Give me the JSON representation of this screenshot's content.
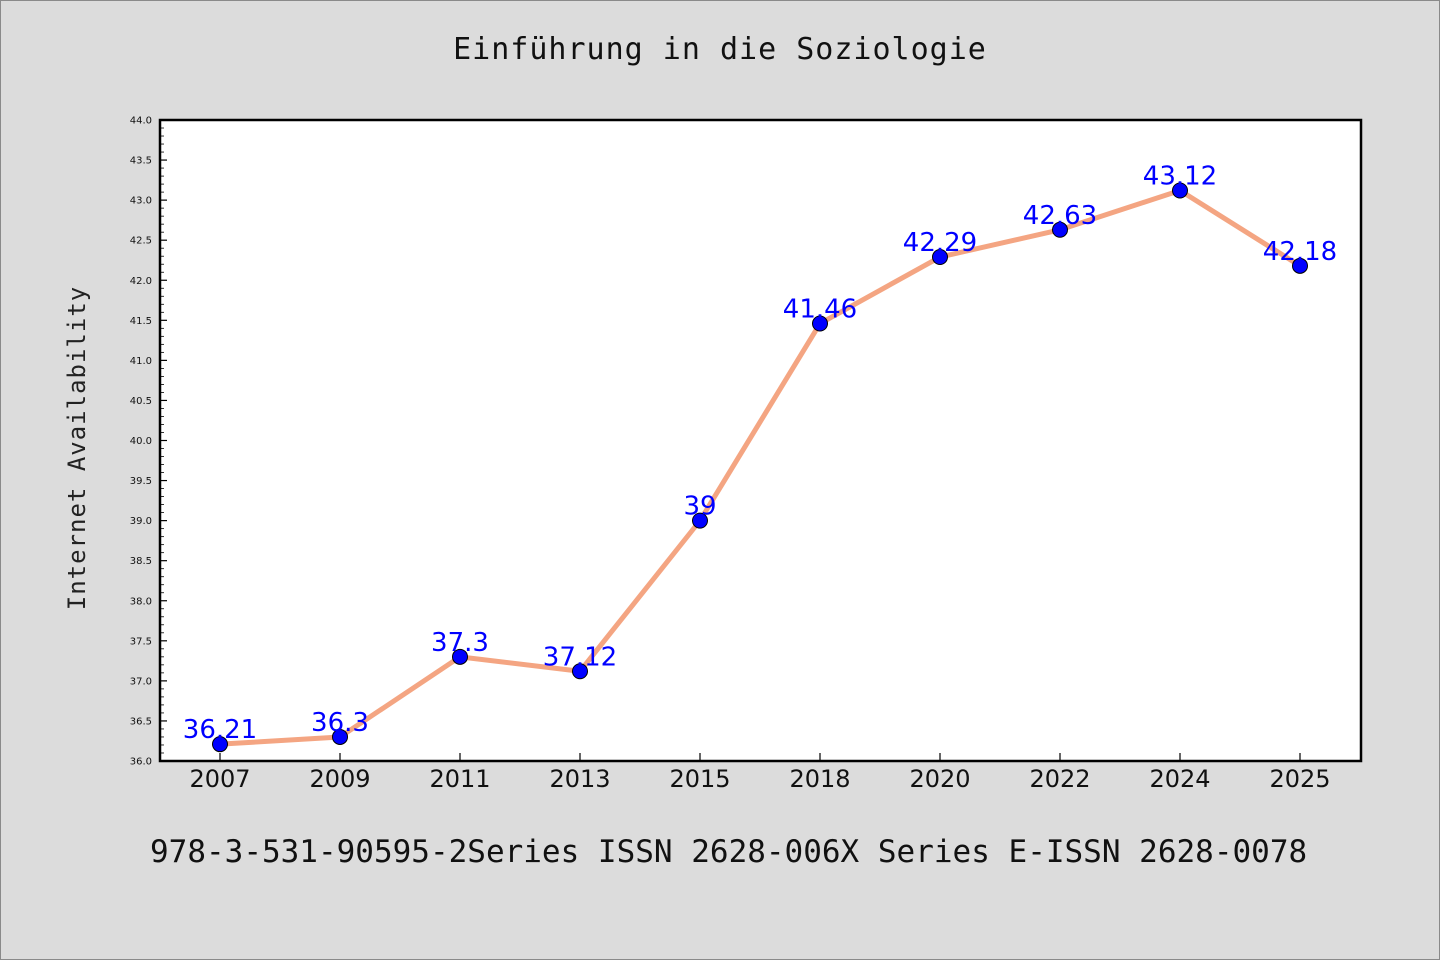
{
  "chart_data": {
    "type": "line",
    "title": "Einführung in die Soziologie",
    "ylabel": "Internet Availability",
    "xlabel": "",
    "categories": [
      "2007",
      "2009",
      "2011",
      "2013",
      "2015",
      "2018",
      "2020",
      "2022",
      "2024",
      "2025"
    ],
    "series": [
      {
        "values": [
          36.21,
          36.3,
          37.3,
          37.12,
          39,
          41.46,
          42.29,
          42.63,
          43.12,
          42.18
        ],
        "labels": [
          "36.21",
          "36.3",
          "37.3",
          "37.12",
          "39",
          "41.46",
          "42.29",
          "42.63",
          "43.12",
          "42.18"
        ]
      }
    ],
    "ylim": [
      36.0,
      44.0
    ],
    "yticks": [
      "36.0",
      "36.5",
      "37.0",
      "37.5",
      "38.0",
      "38.5",
      "39.0",
      "39.5",
      "40.0",
      "40.5",
      "41.0",
      "41.5",
      "42.0",
      "42.5",
      "43.0",
      "43.5",
      "44.0"
    ],
    "grid": false,
    "colors": {
      "line": "#f4a582",
      "marker": "#0000ff",
      "label": "#0000ff",
      "background": "#dcdcdc",
      "plot_background": "#ffffff"
    }
  },
  "footer": "978-3-531-90595-2Series ISSN 2628-006X Series E-ISSN 2628-0078"
}
